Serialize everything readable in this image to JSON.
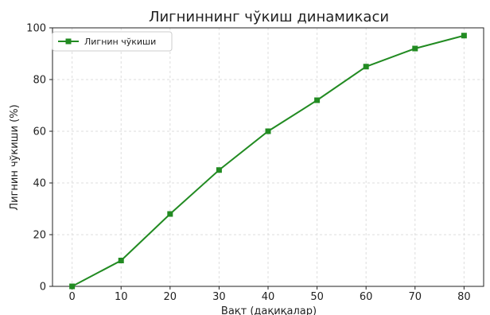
{
  "chart_data": {
    "type": "line",
    "title": "Лигниннинг чўкиш динамикаси",
    "xlabel": "Вақт (дақиқалар)",
    "ylabel": "Лигнин чўкиши (%)",
    "x": [
      0,
      10,
      20,
      30,
      40,
      50,
      60,
      70,
      80
    ],
    "series": [
      {
        "name": "Лигнин чўкиши",
        "values": [
          0,
          10,
          28,
          45,
          60,
          72,
          85,
          92,
          97
        ],
        "color": "#228b22",
        "marker": "square"
      }
    ],
    "xlim": [
      -4,
      84
    ],
    "ylim": [
      0,
      100
    ],
    "xticks": [
      0,
      10,
      20,
      30,
      40,
      50,
      60,
      70,
      80
    ],
    "yticks": [
      0,
      20,
      40,
      60,
      80,
      100
    ],
    "grid": true,
    "legend_position": "top-left"
  }
}
